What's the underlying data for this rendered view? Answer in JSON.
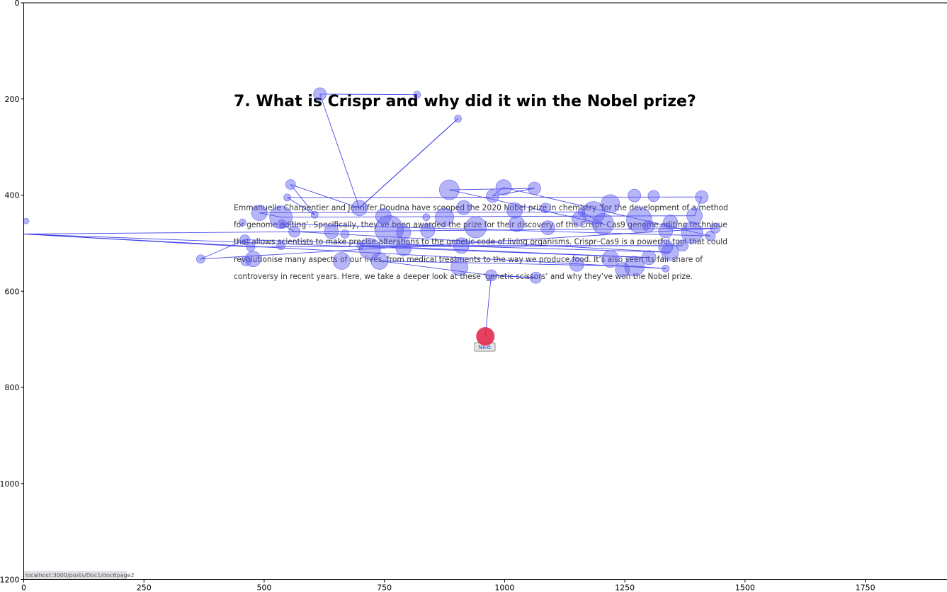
{
  "page": {
    "title": "7. What is Crispr and why did it win the Nobel prize?",
    "paragraph_lines": [
      "Emmanuelle Charpentier and Jennifer Doudna have scooped the 2020 Nobel prize in chemistry ‘for the development of a method",
      "for genome editing’. Specifically, they’ve been awarded the prize for their discovery of the Crispr–Cas9 genome editing technique",
      "that allows scientists to make precise alterations to the genetic code of living organisms. Crispr–Cas9 is a powerful tool that could",
      "revolutionise many aspects of our lives, from medical treatments to the way we produce food. It’s also seen its fair share of",
      "controversy in recent years. Here, we take a deeper look at these ‘genetic scissors’ and why they’ve won the Nobel prize."
    ],
    "next_button_label": "Next",
    "status_url": "localhost:3000/posts/Doc1/doc6page2"
  },
  "chart_data": {
    "type": "scatter",
    "title": "",
    "xlabel": "",
    "ylabel": "",
    "xlim": [
      0,
      1920
    ],
    "ylim": [
      1200,
      0
    ],
    "x_ticks": [
      0,
      250,
      500,
      750,
      1000,
      1250,
      1500,
      1750
    ],
    "y_ticks": [
      0,
      200,
      400,
      600,
      800,
      1000,
      1200
    ],
    "grid": false,
    "colors": {
      "fixation": "#5b5bf0",
      "path": "#2a2ae6",
      "final_fixation": "#e01f44"
    },
    "fixations": [
      {
        "x": 818,
        "y": 191,
        "r": 5
      },
      {
        "x": 616,
        "y": 190,
        "r": 9
      },
      {
        "x": 903,
        "y": 241,
        "r": 5
      },
      {
        "x": 698,
        "y": 427,
        "r": 11
      },
      {
        "x": 555,
        "y": 378,
        "r": 7
      },
      {
        "x": 605,
        "y": 441,
        "r": 5
      },
      {
        "x": 548,
        "y": 405,
        "r": 5
      },
      {
        "x": 490,
        "y": 437,
        "r": 11
      },
      {
        "x": 535,
        "y": 446,
        "r": 16
      },
      {
        "x": 885,
        "y": 389,
        "r": 14
      },
      {
        "x": 998,
        "y": 384,
        "r": 11
      },
      {
        "x": 1062,
        "y": 386,
        "r": 9
      },
      {
        "x": 975,
        "y": 402,
        "r": 9
      },
      {
        "x": 915,
        "y": 426,
        "r": 10
      },
      {
        "x": 1021,
        "y": 432,
        "r": 11
      },
      {
        "x": 1085,
        "y": 427,
        "r": 7
      },
      {
        "x": 1270,
        "y": 401,
        "r": 9
      },
      {
        "x": 1310,
        "y": 402,
        "r": 8
      },
      {
        "x": 1410,
        "y": 404,
        "r": 9
      },
      {
        "x": 1220,
        "y": 418,
        "r": 13
      },
      {
        "x": 1185,
        "y": 437,
        "r": 16
      },
      {
        "x": 1160,
        "y": 435,
        "r": 5
      },
      {
        "x": 1395,
        "y": 443,
        "r": 11
      },
      {
        "x": 875,
        "y": 446,
        "r": 13
      },
      {
        "x": 837,
        "y": 446,
        "r": 5
      },
      {
        "x": 748,
        "y": 444,
        "r": 11
      },
      {
        "x": 760,
        "y": 472,
        "r": 20
      },
      {
        "x": 790,
        "y": 478,
        "r": 10
      },
      {
        "x": 940,
        "y": 467,
        "r": 15
      },
      {
        "x": 1025,
        "y": 460,
        "r": 11
      },
      {
        "x": 1090,
        "y": 468,
        "r": 10
      },
      {
        "x": 1155,
        "y": 450,
        "r": 10
      },
      {
        "x": 1205,
        "y": 460,
        "r": 15
      },
      {
        "x": 1280,
        "y": 452,
        "r": 18
      },
      {
        "x": 1300,
        "y": 465,
        "r": 8
      },
      {
        "x": 1345,
        "y": 456,
        "r": 10
      },
      {
        "x": 1335,
        "y": 474,
        "r": 10
      },
      {
        "x": 1390,
        "y": 478,
        "r": 15
      },
      {
        "x": 1428,
        "y": 485,
        "r": 7
      },
      {
        "x": 1438,
        "y": 469,
        "r": 7
      },
      {
        "x": 455,
        "y": 457,
        "r": 5
      },
      {
        "x": 537,
        "y": 460,
        "r": 6
      },
      {
        "x": 563,
        "y": 476,
        "r": 8
      },
      {
        "x": 640,
        "y": 476,
        "r": 10
      },
      {
        "x": 668,
        "y": 481,
        "r": 6
      },
      {
        "x": 840,
        "y": 474,
        "r": 10
      },
      {
        "x": 910,
        "y": 505,
        "r": 11
      },
      {
        "x": 700,
        "y": 505,
        "r": 5
      },
      {
        "x": 720,
        "y": 512,
        "r": 15
      },
      {
        "x": 790,
        "y": 510,
        "r": 11
      },
      {
        "x": 1335,
        "y": 508,
        "r": 10
      },
      {
        "x": 1344,
        "y": 519,
        "r": 12
      },
      {
        "x": 1370,
        "y": 505,
        "r": 8
      },
      {
        "x": 1300,
        "y": 530,
        "r": 10
      },
      {
        "x": 1220,
        "y": 533,
        "r": 12
      },
      {
        "x": 1270,
        "y": 548,
        "r": 14
      },
      {
        "x": 1245,
        "y": 555,
        "r": 10
      },
      {
        "x": 1150,
        "y": 544,
        "r": 10
      },
      {
        "x": 1335,
        "y": 553,
        "r": 5
      },
      {
        "x": 906,
        "y": 550,
        "r": 12
      },
      {
        "x": 740,
        "y": 537,
        "r": 12
      },
      {
        "x": 661,
        "y": 537,
        "r": 12
      },
      {
        "x": 477,
        "y": 533,
        "r": 11
      },
      {
        "x": 462,
        "y": 537,
        "r": 7
      },
      {
        "x": 472,
        "y": 508,
        "r": 6
      },
      {
        "x": 460,
        "y": 493,
        "r": 7
      },
      {
        "x": 535,
        "y": 505,
        "r": 6
      },
      {
        "x": 368,
        "y": 533,
        "r": 6
      },
      {
        "x": 5,
        "y": 454,
        "r": 4
      },
      {
        "x": 972,
        "y": 567,
        "r": 8
      },
      {
        "x": 1065,
        "y": 572,
        "r": 8
      }
    ],
    "final_fixation": {
      "x": 960,
      "y": 694,
      "r": 13
    },
    "scanpath": [
      [
        818,
        191
      ],
      [
        616,
        190
      ],
      [
        698,
        427
      ],
      [
        903,
        241
      ],
      [
        698,
        427
      ],
      [
        555,
        378
      ],
      [
        605,
        441
      ],
      [
        548,
        405
      ],
      [
        1410,
        404
      ],
      [
        1395,
        443
      ],
      [
        535,
        446
      ],
      [
        490,
        437
      ],
      [
        1160,
        435
      ],
      [
        1205,
        460
      ],
      [
        885,
        389
      ],
      [
        1062,
        386
      ],
      [
        975,
        402
      ],
      [
        998,
        384
      ],
      [
        1428,
        485
      ],
      [
        537,
        460
      ],
      [
        563,
        476
      ],
      [
        1344,
        519
      ],
      [
        460,
        493
      ],
      [
        368,
        533
      ],
      [
        1438,
        469
      ],
      [
        0,
        481
      ],
      [
        1300,
        530
      ],
      [
        700,
        505
      ],
      [
        1370,
        505
      ],
      [
        472,
        508
      ],
      [
        0,
        481
      ],
      [
        1335,
        553
      ],
      [
        1270,
        548
      ],
      [
        740,
        537
      ],
      [
        972,
        567
      ],
      [
        1065,
        572
      ],
      [
        972,
        567
      ],
      [
        960,
        694
      ]
    ]
  }
}
